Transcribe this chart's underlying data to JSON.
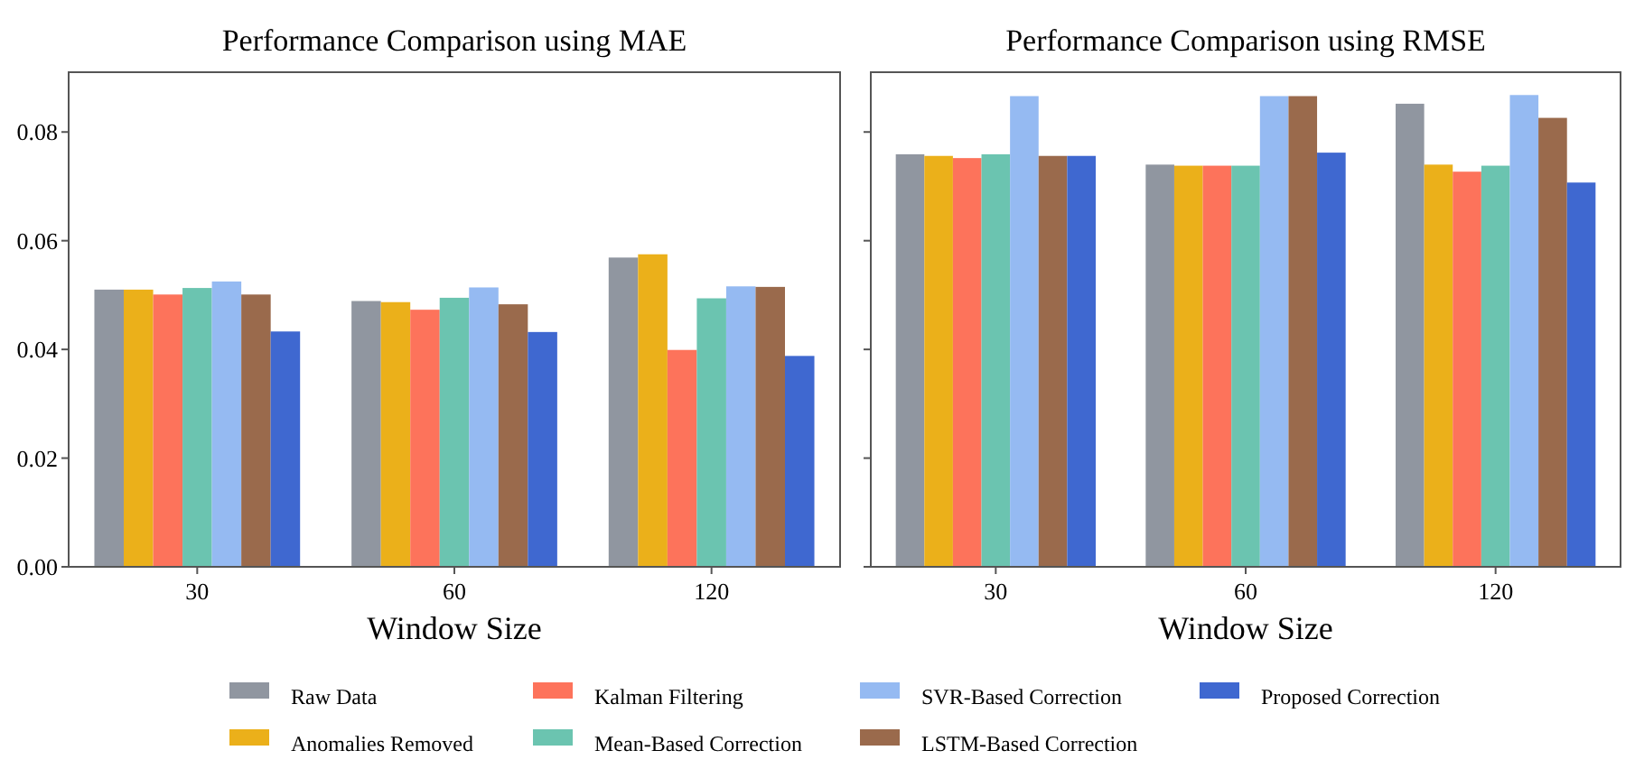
{
  "chart_data": [
    {
      "type": "bar",
      "title": "Performance Comparison using MAE",
      "xlabel": "Window Size",
      "categories": [
        "30",
        "60",
        "120"
      ],
      "ylim": [
        0,
        0.091
      ],
      "yticks": [
        {
          "value": 0,
          "label": "0.00"
        },
        {
          "value": 0.02,
          "label": "0.02"
        },
        {
          "value": 0.04,
          "label": "0.04"
        },
        {
          "value": 0.06,
          "label": "0.06"
        },
        {
          "value": 0.08,
          "label": "0.08"
        }
      ],
      "grid": false,
      "legend": "bottom",
      "series": [
        {
          "name": "Raw Data",
          "color": "#9096a0",
          "values": [
            0.051,
            0.0489,
            0.0569
          ]
        },
        {
          "name": "Anomalies Removed",
          "color": "#ebb01a",
          "values": [
            0.051,
            0.0487,
            0.0575
          ]
        },
        {
          "name": "Kalman Filtering",
          "color": "#fd735b",
          "values": [
            0.0501,
            0.0473,
            0.0399
          ]
        },
        {
          "name": "Mean-Based Correction",
          "color": "#6bc4b0",
          "values": [
            0.0513,
            0.0495,
            0.0494
          ]
        },
        {
          "name": "SVR-Based Correction",
          "color": "#95baf2",
          "values": [
            0.0525,
            0.0514,
            0.0516
          ]
        },
        {
          "name": "LSTM-Based Correction",
          "color": "#9a6a4c",
          "values": [
            0.0501,
            0.0483,
            0.0515
          ]
        },
        {
          "name": "Proposed Correction",
          "color": "#3f68d0",
          "values": [
            0.0433,
            0.0432,
            0.0388
          ]
        }
      ]
    },
    {
      "type": "bar",
      "title": "Performance Comparison using RMSE",
      "xlabel": "Window Size",
      "categories": [
        "30",
        "60",
        "120"
      ],
      "ylim": [
        0,
        0.091
      ],
      "yticks": [
        {
          "value": 0,
          "label": null
        },
        {
          "value": 0.02,
          "label": null
        },
        {
          "value": 0.04,
          "label": null
        },
        {
          "value": 0.06,
          "label": null
        },
        {
          "value": 0.08,
          "label": null
        }
      ],
      "tick_labels": "x",
      "grid": false,
      "series": [
        {
          "color": "#9096a0",
          "values": [
            0.0759,
            0.074,
            0.0852
          ]
        },
        {
          "color": "#ebb01a",
          "values": [
            0.0756,
            0.0738,
            0.074
          ]
        },
        {
          "color": "#fd735b",
          "values": [
            0.0752,
            0.0738,
            0.0727
          ]
        },
        {
          "color": "#6bc4b0",
          "values": [
            0.0759,
            0.0738,
            0.0738
          ]
        },
        {
          "color": "#95baf2",
          "values": [
            0.0866,
            0.0866,
            0.0868
          ]
        },
        {
          "color": "#9a6a4c",
          "values": [
            0.0756,
            0.0866,
            0.0826
          ]
        },
        {
          "color": "#3f68d0",
          "values": [
            0.0756,
            0.0762,
            0.0707
          ]
        }
      ]
    }
  ]
}
